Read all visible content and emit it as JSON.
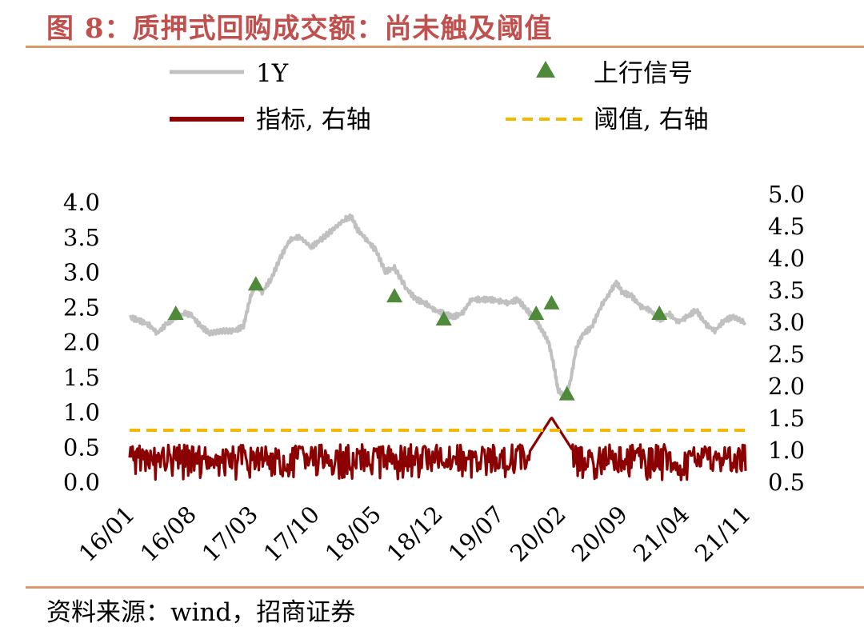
{
  "title": "图 8：质押式回购成交额：尚未触及阈值",
  "source": "资料来源：wind，招商证券",
  "colors": {
    "title": "#C0504D",
    "rule": "#D99A6C",
    "series_1y": "#C0C0C0",
    "series_indicator": "#8B0000",
    "threshold": "#F5B800",
    "signal": "#4E8A3A"
  },
  "chart_data": {
    "type": "line",
    "legend": {
      "placement": "top",
      "entries": [
        "1Y",
        "上行信号",
        "指标, 右轴",
        "阈值, 右轴"
      ]
    },
    "x": {
      "categories": [
        "16/01",
        "16/08",
        "17/03",
        "17/10",
        "18/05",
        "18/12",
        "19/07",
        "20/02",
        "20/09",
        "21/04",
        "21/11"
      ]
    },
    "y_left": {
      "min": 0.0,
      "max": 4.0,
      "ticks": [
        "0.0",
        "0.5",
        "1.0",
        "1.5",
        "2.0",
        "2.5",
        "3.0",
        "3.5",
        "4.0"
      ]
    },
    "y_right": {
      "min": 0.5,
      "max": 5.0,
      "ticks": [
        "0.5",
        "1.0",
        "1.5",
        "2.0",
        "2.5",
        "3.0",
        "3.5",
        "4.0",
        "4.5",
        "5.0"
      ]
    },
    "series": [
      {
        "name": "1Y",
        "axis": "left",
        "points": [
          [
            0.0,
            2.35
          ],
          [
            0.15,
            2.3
          ],
          [
            0.3,
            2.25
          ],
          [
            0.45,
            2.12
          ],
          [
            0.6,
            2.25
          ],
          [
            0.75,
            2.35
          ],
          [
            0.9,
            2.4
          ],
          [
            1.0,
            2.38
          ],
          [
            1.15,
            2.22
          ],
          [
            1.3,
            2.12
          ],
          [
            1.5,
            2.15
          ],
          [
            1.7,
            2.15
          ],
          [
            1.85,
            2.22
          ],
          [
            1.95,
            2.6
          ],
          [
            2.05,
            2.85
          ],
          [
            2.15,
            2.7
          ],
          [
            2.3,
            2.9
          ],
          [
            2.45,
            3.2
          ],
          [
            2.6,
            3.45
          ],
          [
            2.75,
            3.5
          ],
          [
            2.95,
            3.35
          ],
          [
            3.1,
            3.45
          ],
          [
            3.3,
            3.6
          ],
          [
            3.5,
            3.75
          ],
          [
            3.6,
            3.78
          ],
          [
            3.7,
            3.6
          ],
          [
            3.85,
            3.45
          ],
          [
            4.0,
            3.3
          ],
          [
            4.15,
            3.0
          ],
          [
            4.3,
            3.05
          ],
          [
            4.5,
            2.75
          ],
          [
            4.65,
            2.6
          ],
          [
            4.8,
            2.55
          ],
          [
            4.95,
            2.45
          ],
          [
            5.1,
            2.4
          ],
          [
            5.25,
            2.35
          ],
          [
            5.4,
            2.4
          ],
          [
            5.55,
            2.6
          ],
          [
            5.7,
            2.6
          ],
          [
            5.85,
            2.6
          ],
          [
            6.0,
            2.58
          ],
          [
            6.15,
            2.55
          ],
          [
            6.3,
            2.6
          ],
          [
            6.45,
            2.45
          ],
          [
            6.6,
            2.3
          ],
          [
            6.7,
            2.15
          ],
          [
            6.8,
            2.0
          ],
          [
            6.9,
            1.6
          ],
          [
            6.95,
            1.32
          ],
          [
            7.05,
            1.2
          ],
          [
            7.15,
            1.4
          ],
          [
            7.25,
            1.9
          ],
          [
            7.35,
            2.1
          ],
          [
            7.5,
            2.2
          ],
          [
            7.65,
            2.5
          ],
          [
            7.8,
            2.7
          ],
          [
            7.9,
            2.85
          ],
          [
            8.0,
            2.7
          ],
          [
            8.15,
            2.65
          ],
          [
            8.3,
            2.5
          ],
          [
            8.45,
            2.45
          ],
          [
            8.6,
            2.3
          ],
          [
            8.75,
            2.4
          ],
          [
            8.9,
            2.28
          ],
          [
            9.05,
            2.35
          ],
          [
            9.2,
            2.45
          ],
          [
            9.35,
            2.25
          ],
          [
            9.5,
            2.15
          ],
          [
            9.65,
            2.3
          ],
          [
            9.8,
            2.35
          ],
          [
            10.0,
            2.27
          ]
        ]
      },
      {
        "name": "指标, 右轴",
        "axis": "right",
        "summary": "oscillates daily between about 0.5 and 1.2, peaking near 1.5 around 20/03",
        "baseline_range": [
          0.5,
          1.2
        ],
        "peak": [
          6.85,
          1.5
        ]
      },
      {
        "name": "阈值, 右轴",
        "axis": "right",
        "value": 1.3
      },
      {
        "name": "上行信号",
        "axis": "left",
        "marker": "triangle",
        "points": [
          [
            0.75,
            2.4
          ],
          [
            2.05,
            2.82
          ],
          [
            4.3,
            2.65
          ],
          [
            5.1,
            2.32
          ],
          [
            6.6,
            2.4
          ],
          [
            6.85,
            2.55
          ],
          [
            7.1,
            1.25
          ],
          [
            8.6,
            2.4
          ]
        ]
      }
    ]
  }
}
